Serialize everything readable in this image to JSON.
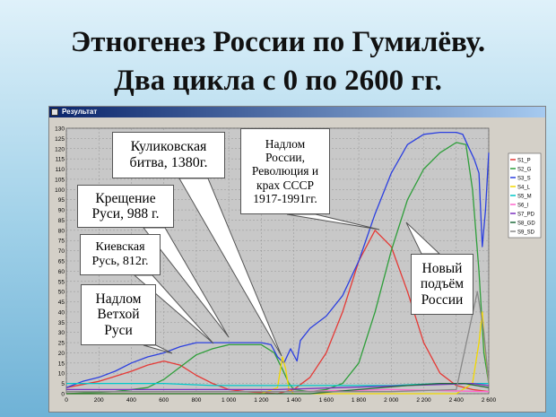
{
  "slide": {
    "title_line1": "Этногенез России по Гумилёву.",
    "title_line2": "Два цикла с 0 по 2600 гг."
  },
  "window": {
    "title": "Результат"
  },
  "annotations": {
    "kulikovo": "Куликовская\nбитва, 1380г.",
    "nadlom_russia": "Надлом\nРоссии,\nРеволюция и\nкрах СССР\n1917-1991гг.",
    "kreshchenie": "Крещение\nРуси, 988 г.",
    "kievskaya": "Киевская\nРусь, 812г.",
    "nadlom_vetkhoy": "Надлом\nВетхой\nРуси",
    "novy_podyom": "Новый\nподъём\nРоссии"
  },
  "chart_data": {
    "type": "line",
    "xlim": [
      0,
      2600
    ],
    "ylim": [
      0,
      130
    ],
    "xticks": [
      0,
      200,
      400,
      600,
      800,
      1000,
      1200,
      1400,
      1600,
      1800,
      2000,
      2200,
      2400,
      2600
    ],
    "xtick_labels": [
      "0",
      "200",
      "400",
      "600",
      "800",
      "1 000",
      "1 200",
      "1 400",
      "1 600",
      "1 800",
      "2 000",
      "2 200",
      "2 400",
      "2 600"
    ],
    "yticks": [
      0,
      5,
      10,
      15,
      20,
      25,
      30,
      35,
      40,
      45,
      50,
      55,
      60,
      65,
      70,
      75,
      80,
      85,
      90,
      95,
      100,
      105,
      110,
      115,
      120,
      125,
      130
    ],
    "grid": true,
    "legend_position": "right",
    "series": [
      {
        "name": "S1_P",
        "color": "#e53935",
        "points": [
          [
            0,
            3
          ],
          [
            200,
            6
          ],
          [
            400,
            11
          ],
          [
            500,
            14
          ],
          [
            600,
            16
          ],
          [
            700,
            14
          ],
          [
            800,
            9
          ],
          [
            900,
            5
          ],
          [
            1000,
            2
          ],
          [
            1100,
            1
          ],
          [
            1300,
            0
          ],
          [
            1400,
            2
          ],
          [
            1500,
            8
          ],
          [
            1600,
            20
          ],
          [
            1700,
            40
          ],
          [
            1800,
            65
          ],
          [
            1900,
            80
          ],
          [
            2000,
            72
          ],
          [
            2100,
            50
          ],
          [
            2200,
            25
          ],
          [
            2300,
            10
          ],
          [
            2400,
            4
          ],
          [
            2500,
            2
          ],
          [
            2600,
            1
          ]
        ]
      },
      {
        "name": "S2_G",
        "color": "#2e9e3a",
        "points": [
          [
            0,
            0
          ],
          [
            300,
            1
          ],
          [
            500,
            3
          ],
          [
            600,
            7
          ],
          [
            700,
            13
          ],
          [
            800,
            19
          ],
          [
            900,
            22
          ],
          [
            1000,
            24
          ],
          [
            1100,
            24
          ],
          [
            1200,
            24
          ],
          [
            1280,
            20
          ],
          [
            1330,
            12
          ],
          [
            1370,
            5
          ],
          [
            1400,
            2
          ],
          [
            1500,
            1
          ],
          [
            1600,
            2
          ],
          [
            1700,
            5
          ],
          [
            1800,
            15
          ],
          [
            1900,
            40
          ],
          [
            2000,
            70
          ],
          [
            2100,
            95
          ],
          [
            2200,
            110
          ],
          [
            2300,
            118
          ],
          [
            2400,
            123
          ],
          [
            2460,
            122
          ],
          [
            2500,
            100
          ],
          [
            2540,
            60
          ],
          [
            2570,
            20
          ],
          [
            2600,
            5
          ]
        ]
      },
      {
        "name": "S3_S",
        "color": "#2b3fe0",
        "points": [
          [
            0,
            3
          ],
          [
            100,
            6
          ],
          [
            200,
            8
          ],
          [
            300,
            11
          ],
          [
            400,
            15
          ],
          [
            500,
            18
          ],
          [
            600,
            20
          ],
          [
            700,
            23
          ],
          [
            800,
            25
          ],
          [
            900,
            25
          ],
          [
            1000,
            25
          ],
          [
            1100,
            25
          ],
          [
            1200,
            25
          ],
          [
            1260,
            24
          ],
          [
            1300,
            18
          ],
          [
            1340,
            15
          ],
          [
            1380,
            22
          ],
          [
            1420,
            16
          ],
          [
            1440,
            26
          ],
          [
            1500,
            32
          ],
          [
            1600,
            38
          ],
          [
            1700,
            48
          ],
          [
            1800,
            65
          ],
          [
            1900,
            88
          ],
          [
            2000,
            108
          ],
          [
            2100,
            122
          ],
          [
            2200,
            127
          ],
          [
            2300,
            128
          ],
          [
            2400,
            128
          ],
          [
            2440,
            127
          ],
          [
            2480,
            120
          ],
          [
            2510,
            115
          ],
          [
            2540,
            108
          ],
          [
            2560,
            72
          ],
          [
            2580,
            90
          ],
          [
            2600,
            118
          ]
        ]
      },
      {
        "name": "S4_L",
        "color": "#f2d800",
        "points": [
          [
            0,
            0
          ],
          [
            1200,
            0
          ],
          [
            1300,
            3
          ],
          [
            1330,
            18
          ],
          [
            1350,
            12
          ],
          [
            1370,
            2
          ],
          [
            1400,
            0
          ],
          [
            2000,
            0
          ],
          [
            2400,
            0
          ],
          [
            2500,
            5
          ],
          [
            2540,
            25
          ],
          [
            2560,
            40
          ],
          [
            2580,
            20
          ],
          [
            2600,
            5
          ]
        ]
      },
      {
        "name": "S5_M",
        "color": "#00c8c8",
        "points": [
          [
            0,
            5
          ],
          [
            300,
            5
          ],
          [
            600,
            5
          ],
          [
            900,
            4
          ],
          [
            1200,
            4
          ],
          [
            1400,
            4
          ],
          [
            1700,
            4
          ],
          [
            2000,
            4
          ],
          [
            2300,
            5
          ],
          [
            2500,
            5
          ],
          [
            2600,
            5
          ]
        ]
      },
      {
        "name": "S6_I",
        "color": "#ff66cc",
        "points": [
          [
            0,
            1
          ],
          [
            800,
            1
          ],
          [
            1400,
            1
          ],
          [
            2000,
            2
          ],
          [
            2600,
            1
          ]
        ]
      },
      {
        "name": "S7_PD",
        "color": "#7a2fbf",
        "points": [
          [
            0,
            2
          ],
          [
            600,
            2
          ],
          [
            1300,
            2
          ],
          [
            1700,
            3
          ],
          [
            2100,
            4
          ],
          [
            2500,
            5
          ],
          [
            2600,
            4
          ]
        ]
      },
      {
        "name": "S8_GD",
        "color": "#1f6b3a",
        "points": [
          [
            0,
            0
          ],
          [
            1500,
            0
          ],
          [
            1800,
            2
          ],
          [
            2100,
            4
          ],
          [
            2300,
            5
          ],
          [
            2450,
            5
          ],
          [
            2600,
            3
          ]
        ]
      },
      {
        "name": "S9_SD",
        "color": "#888888",
        "points": [
          [
            0,
            1
          ],
          [
            1400,
            1
          ],
          [
            2000,
            1
          ],
          [
            2400,
            2
          ],
          [
            2530,
            50
          ],
          [
            2570,
            30
          ],
          [
            2600,
            5
          ]
        ]
      }
    ]
  }
}
